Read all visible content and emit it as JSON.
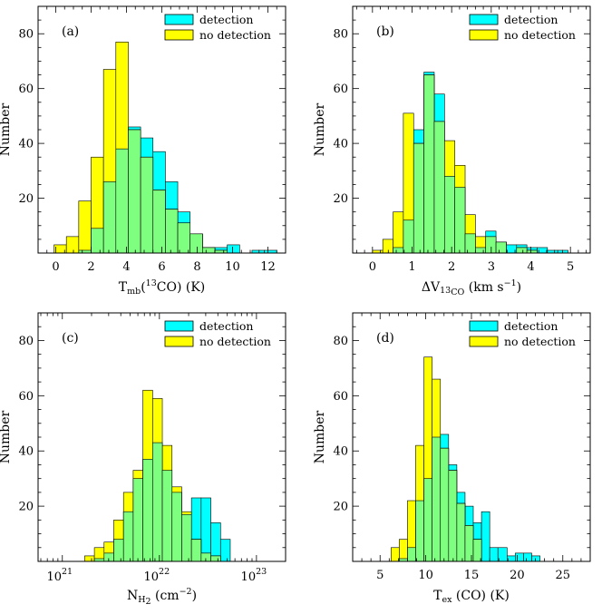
{
  "figure": {
    "y_axis_label": "Number",
    "legend": [
      "detection",
      "no detection"
    ],
    "colors": {
      "detection": "#00ffff",
      "no_detection": "#ffff00",
      "overlap": "#7fff7f",
      "edge": "#000000"
    }
  },
  "chart_data": [
    {
      "type": "bar",
      "panel": "(a)",
      "xlabel_main": "T",
      "xlabel_sub": "mb",
      "xlabel_paren_open": "(",
      "xlabel_sup": "13",
      "xlabel_rest": "CO) (K)",
      "ylabel": "Number",
      "xscale": "linear",
      "xlim": [
        -1,
        13
      ],
      "ylim": [
        0,
        90
      ],
      "xticks": [
        0,
        2,
        4,
        6,
        8,
        10,
        12
      ],
      "xtick_labels": [
        "0",
        "2",
        "4",
        "6",
        "8",
        "10",
        "12"
      ],
      "yticks": [
        20,
        40,
        60,
        80
      ],
      "ytick_labels": [
        "20",
        "40",
        "60",
        "80"
      ],
      "bin_edges": [
        -0.1,
        0.6,
        1.3,
        2.0,
        2.7,
        3.4,
        4.1,
        4.8,
        5.5,
        6.2,
        6.9,
        7.6,
        8.3,
        9.0,
        9.7,
        10.4,
        11.1,
        11.8,
        12.5
      ],
      "series": [
        {
          "name": "detection",
          "values": [
            0,
            0,
            1,
            9,
            26,
            38,
            46,
            42,
            37,
            26,
            15,
            7,
            2,
            2,
            3,
            0,
            1,
            1
          ]
        },
        {
          "name": "no detection",
          "values": [
            3,
            6,
            19,
            35,
            67,
            77,
            45,
            35,
            23,
            16,
            11,
            7,
            2,
            1,
            0,
            0,
            0,
            0
          ]
        }
      ]
    },
    {
      "type": "bar",
      "panel": "(b)",
      "xlabel_main": "ΔV",
      "xlabel_sub": "13",
      "xlabel_sub2": "CO",
      "xlabel_rest": " (km s",
      "xlabel_sup": "−1",
      "xlabel_close": ")",
      "ylabel": "Number",
      "xscale": "linear",
      "xlim": [
        -0.5,
        5.5
      ],
      "ylim": [
        0,
        90
      ],
      "xticks": [
        0,
        1,
        2,
        3,
        4,
        5
      ],
      "xtick_labels": [
        "0",
        "1",
        "2",
        "3",
        "4",
        "5"
      ],
      "yticks": [
        20,
        40,
        60,
        80
      ],
      "ytick_labels": [
        "20",
        "40",
        "60",
        "80"
      ],
      "bin_edges": [
        0.0,
        0.26,
        0.52,
        0.78,
        1.04,
        1.3,
        1.56,
        1.82,
        2.08,
        2.34,
        2.6,
        2.86,
        3.12,
        3.38,
        3.64,
        3.9,
        4.16,
        4.42,
        4.68,
        4.94,
        5.2
      ],
      "series": [
        {
          "name": "detection",
          "values": [
            0,
            0,
            2,
            12,
            45,
            66,
            58,
            28,
            24,
            7,
            2,
            8,
            4,
            3,
            3,
            2,
            2,
            1,
            1,
            0
          ]
        },
        {
          "name": "no detection",
          "values": [
            1,
            5,
            15,
            51,
            40,
            65,
            48,
            41,
            32,
            14,
            6,
            6,
            4,
            0,
            2,
            1,
            0,
            0,
            0,
            0
          ]
        }
      ]
    },
    {
      "type": "bar",
      "panel": "(c)",
      "xlabel_main": "N",
      "xlabel_sub": "H",
      "xlabel_sub2": "2",
      "xlabel_rest": " (cm",
      "xlabel_sup": "−2",
      "xlabel_close": ")",
      "ylabel": "Number",
      "xscale": "log",
      "xlim": [
        20.75,
        23.3
      ],
      "ylim": [
        0,
        90
      ],
      "xticks": [
        21,
        22,
        23
      ],
      "xtick_labels": [
        "10",
        "10",
        "10"
      ],
      "xtick_exponents": [
        "21",
        "22",
        "23"
      ],
      "yticks": [
        20,
        40,
        60,
        80
      ],
      "ytick_labels": [
        "20",
        "40",
        "60",
        "80"
      ],
      "bin_edges": [
        21.23,
        21.33,
        21.43,
        21.53,
        21.63,
        21.73,
        21.83,
        21.93,
        22.03,
        22.13,
        22.23,
        22.33,
        22.43,
        22.53,
        22.63,
        22.73
      ],
      "series": [
        {
          "name": "detection",
          "values": [
            0,
            1,
            3,
            8,
            18,
            30,
            37,
            43,
            33,
            25,
            17,
            23,
            23,
            14,
            8
          ]
        },
        {
          "name": "no detection",
          "values": [
            2,
            5,
            7,
            15,
            25,
            33,
            62,
            59,
            42,
            27,
            18,
            8,
            3,
            2,
            0
          ]
        }
      ]
    },
    {
      "type": "bar",
      "panel": "(d)",
      "xlabel_main": "T",
      "xlabel_sub": "ex",
      "xlabel_rest": " (CO) (K)",
      "ylabel": "Number",
      "xscale": "linear",
      "xlim": [
        2,
        28
      ],
      "ylim": [
        0,
        90
      ],
      "xticks": [
        5,
        10,
        15,
        20,
        25
      ],
      "xtick_labels": [
        "5",
        "10",
        "15",
        "20",
        "25"
      ],
      "yticks": [
        20,
        40,
        60,
        80
      ],
      "ytick_labels": [
        "20",
        "40",
        "60",
        "80"
      ],
      "bin_edges": [
        6.2,
        7.1,
        8.0,
        8.9,
        9.8,
        10.7,
        11.6,
        12.5,
        13.4,
        14.3,
        15.2,
        16.1,
        17.0,
        17.9,
        18.9,
        19.8,
        20.7,
        21.6,
        22.5
      ],
      "series": [
        {
          "name": "detection",
          "values": [
            0,
            1,
            5,
            22,
            30,
            45,
            46,
            35,
            25,
            20,
            14,
            18,
            5,
            5,
            2,
            3,
            3,
            2
          ]
        },
        {
          "name": "no detection",
          "values": [
            5,
            8,
            22,
            42,
            74,
            66,
            41,
            33,
            21,
            13,
            8,
            0,
            0,
            0,
            0,
            0,
            0,
            0
          ]
        }
      ]
    }
  ]
}
